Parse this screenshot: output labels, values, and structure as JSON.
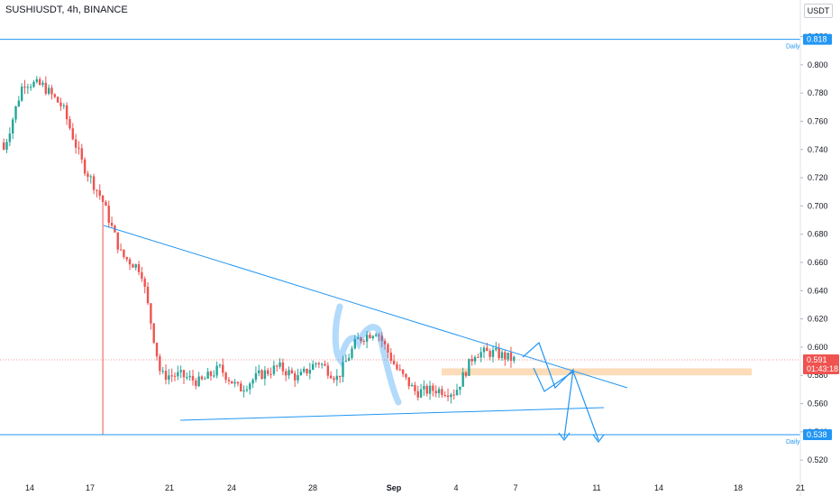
{
  "header": {
    "symbol": "SUSHIUSDT, 4h, BINANCE",
    "currency": "USDT"
  },
  "colors": {
    "up": "#26a69a",
    "down": "#ef5350",
    "line": "#2196f3",
    "zone": "#fbd3a8",
    "price_tag": "#ef5350",
    "level_tag": "#2196f3"
  },
  "chart_data": {
    "type": "candlestick",
    "y_ticks": [
      "0.520",
      "0.540",
      "0.560",
      "0.580",
      "0.600",
      "0.620",
      "0.640",
      "0.660",
      "0.680",
      "0.700",
      "0.720",
      "0.740",
      "0.760",
      "0.780",
      "0.800",
      "0.820"
    ],
    "x_ticks": [
      "14",
      "17",
      "21",
      "24",
      "28",
      "Sep",
      "4",
      "7",
      "11",
      "14",
      "18",
      "21"
    ],
    "ylim": [
      0.515,
      0.828
    ],
    "levels": [
      {
        "price": 0.818,
        "label": "0.818",
        "note": "Daily"
      },
      {
        "price": 0.538,
        "label": "0.538",
        "note": "Daily"
      }
    ],
    "last_price": {
      "price": 0.591,
      "label": "0.591",
      "countdown": "01:43:18"
    },
    "zone": [
      0.58,
      0.585
    ],
    "ohlc_anchors": [
      [
        0.745,
        0.74
      ],
      [
        0.76,
        0.788
      ],
      [
        0.805,
        0.785
      ],
      [
        0.78,
        0.77
      ],
      [
        0.765,
        0.73
      ],
      [
        0.725,
        0.705
      ],
      [
        0.7,
        0.665
      ],
      [
        0.69,
        0.655
      ],
      [
        0.655,
        0.58
      ],
      [
        0.59,
        0.58
      ],
      [
        0.585,
        0.575
      ],
      [
        0.585,
        0.585
      ],
      [
        0.585,
        0.57
      ],
      [
        0.575,
        0.58
      ],
      [
        0.59,
        0.586
      ],
      [
        0.585,
        0.578
      ],
      [
        0.588,
        0.59
      ],
      [
        0.592,
        0.578
      ],
      [
        0.628,
        0.605
      ],
      [
        0.608,
        0.612
      ],
      [
        0.606,
        0.585
      ],
      [
        0.582,
        0.568
      ],
      [
        0.565,
        0.57
      ],
      [
        0.572,
        0.568
      ],
      [
        0.585,
        0.596
      ],
      [
        0.598,
        0.596
      ],
      [
        0.597,
        0.591
      ]
    ]
  }
}
